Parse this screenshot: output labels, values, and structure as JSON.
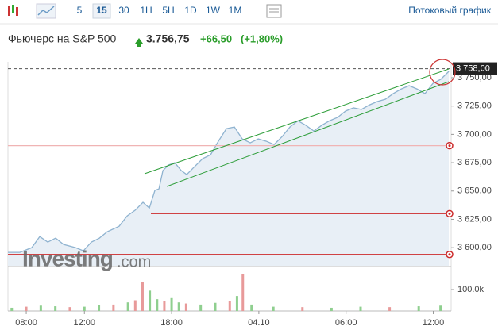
{
  "toolbar": {
    "intervals": [
      "5",
      "15",
      "30",
      "1H",
      "5H",
      "1D",
      "1W",
      "1M"
    ],
    "active": 1,
    "streaming": "Потоковый график"
  },
  "header": {
    "title": "Фьючерс на S&P 500",
    "price": "3.756,75",
    "change": "+66,50",
    "change_pct": "(+1,80%)"
  },
  "watermark": {
    "brand": "Investing",
    "suffix": ".com"
  },
  "chart_data": [
    {
      "type": "line",
      "color": "#8fb3d0",
      "fill": "#e8eff6",
      "x": [
        -1.26,
        -0.44,
        0.38,
        0.93,
        1.48,
        2.02,
        2.57,
        3.39,
        3.93,
        4.48,
        5.03,
        5.57,
        6.39,
        6.94,
        7.49,
        8.03,
        8.47,
        8.85,
        9.13,
        9.4,
        9.78,
        10.22,
        10.66,
        11.04,
        11.58,
        12.13,
        12.68,
        13.22,
        13.77,
        14.32,
        14.86,
        15.41,
        15.96,
        16.5,
        17.05,
        17.6,
        18.14,
        18.69,
        19.23,
        19.78,
        20.33,
        20.87,
        21.42,
        21.97,
        22.51,
        23.06,
        23.61,
        24.15,
        24.7,
        25.25,
        25.79,
        26.34,
        26.89,
        27.43,
        27.98,
        28.52,
        29.07
      ],
      "values": [
        3595.8,
        3595.8,
        3600,
        3609.8,
        3604.9,
        3608.4,
        3602.8,
        3600,
        3597.2,
        3604.9,
        3608.4,
        3614,
        3618.9,
        3628,
        3633,
        3640,
        3635,
        3650.5,
        3651.9,
        3668,
        3672.9,
        3675,
        3668,
        3664.5,
        3671.5,
        3678.5,
        3682,
        3694,
        3705,
        3706.5,
        3696,
        3692.5,
        3696,
        3694,
        3691,
        3698,
        3706.5,
        3712,
        3708,
        3703,
        3708,
        3712,
        3715,
        3720.6,
        3723.4,
        3722,
        3726,
        3729,
        3731,
        3736,
        3740,
        3743,
        3740,
        3736,
        3745,
        3748.6,
        3755.6
      ],
      "xlim": [
        -1.26,
        29.23
      ],
      "xticks": [
        {
          "value": 0,
          "label": "08:00"
        },
        {
          "value": 4,
          "label": "12:00"
        },
        {
          "value": 10,
          "label": "18:00"
        },
        {
          "value": 16,
          "label": "04.10"
        },
        {
          "value": 22,
          "label": "06:00"
        },
        {
          "value": 28,
          "label": "12:00"
        }
      ],
      "ylim": [
        3584,
        3764
      ],
      "yticks": [
        {
          "value": 3600,
          "label": "3 600,00"
        },
        {
          "value": 3625,
          "label": "3 625,00"
        },
        {
          "value": 3650,
          "label": "3 650,00"
        },
        {
          "value": 3675,
          "label": "3 675,00"
        },
        {
          "value": 3700,
          "label": "3 700,00"
        },
        {
          "value": 3725,
          "label": "3 725,00"
        },
        {
          "value": 3750,
          "label": "3 750,00"
        }
      ],
      "levels": [
        {
          "value": 3690,
          "color": "#f0b4b4"
        },
        {
          "value": 3630,
          "color": "#cc2a2a"
        },
        {
          "value": 3594,
          "color": "#cc2a2a"
        }
      ],
      "current": {
        "value": 3758,
        "label": "3 758,00"
      }
    },
    {
      "type": "bar",
      "x": [
        -1,
        0,
        1,
        2,
        3,
        4,
        5,
        6,
        7,
        7.5,
        8,
        8.5,
        9,
        9.5,
        10,
        10.5,
        11,
        12,
        13,
        14,
        14.5,
        14.9,
        15.5,
        17,
        19,
        21,
        23,
        25,
        27,
        28.5
      ],
      "values": [
        15000,
        20000,
        25000,
        22000,
        18000,
        20000,
        28000,
        30000,
        40000,
        50000,
        137000,
        95000,
        55000,
        45000,
        60000,
        40000,
        35000,
        30000,
        38000,
        45000,
        70000,
        174000,
        30000,
        20000,
        18000,
        15000,
        20000,
        18000,
        22000,
        25000
      ],
      "colors": [
        "#8fcf8f",
        "#e89a9a",
        "#8fcf8f",
        "#8fcf8f",
        "#e89a9a",
        "#8fcf8f",
        "#8fcf8f",
        "#e89a9a",
        "#8fcf8f",
        "#e89a9a",
        "#e89a9a",
        "#8fcf8f",
        "#8fcf8f",
        "#e89a9a",
        "#8fcf8f",
        "#8fcf8f",
        "#e89a9a",
        "#8fcf8f",
        "#8fcf8f",
        "#e89a9a",
        "#8fcf8f",
        "#e89a9a",
        "#8fcf8f",
        "#8fcf8f",
        "#e89a9a",
        "#8fcf8f",
        "#8fcf8f",
        "#e89a9a",
        "#8fcf8f",
        "#8fcf8f"
      ],
      "ylim": [
        0,
        200000
      ],
      "yticks": [
        {
          "value": 100000,
          "label": "100.0k"
        }
      ]
    }
  ]
}
